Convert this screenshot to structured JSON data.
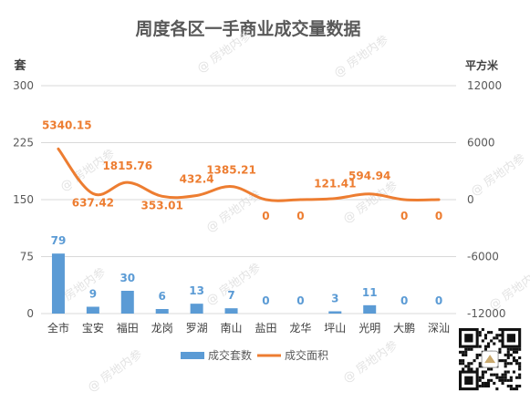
{
  "chart_data": {
    "type": "bar+line",
    "title": "周度各区一手商业成交量数据",
    "categories": [
      "全市",
      "宝安",
      "福田",
      "龙岗",
      "罗湖",
      "南山",
      "盐田",
      "龙华",
      "坪山",
      "光明",
      "大鹏",
      "深汕"
    ],
    "y_left": {
      "unit_label": "套",
      "min": 0,
      "max": 300,
      "ticks": [
        "0",
        "75",
        "150",
        "225",
        "300"
      ]
    },
    "y_right": {
      "unit_label": "平方米",
      "min": -12000,
      "max": 12000,
      "ticks": [
        "-12000",
        "-6000",
        "0",
        "6000",
        "12000"
      ]
    },
    "series": [
      {
        "name": "成交套数",
        "type": "bar",
        "axis": "left",
        "color": "#5b9bd5",
        "values": [
          79,
          9,
          30,
          6,
          13,
          7,
          0,
          0,
          3,
          11,
          0,
          0
        ],
        "labels": [
          "79",
          "9",
          "30",
          "6",
          "13",
          "7",
          "0",
          "0",
          "3",
          "11",
          "0",
          "0"
        ]
      },
      {
        "name": "成交面积",
        "type": "line",
        "axis": "right",
        "color": "#ed7d31",
        "values": [
          5340.15,
          637.42,
          1815.76,
          353.01,
          432.4,
          1385.21,
          0,
          0,
          121.41,
          594.94,
          0,
          0
        ],
        "labels": [
          "5340.15",
          "637.42",
          "1815.76",
          "353.01",
          "432.4",
          "1385.21",
          "0",
          "0",
          "121.41",
          "594.94",
          "0",
          "0"
        ]
      }
    ],
    "legend_position": "bottom",
    "grid": true
  },
  "watermark": "@ 房地内参"
}
